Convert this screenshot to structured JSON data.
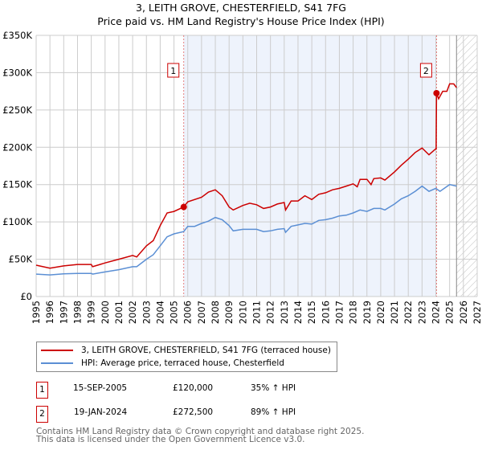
{
  "title": "3, LEITH GROVE, CHESTERFIELD, S41 7FG",
  "subtitle": "Price paid vs. HM Land Registry's House Price Index (HPI)",
  "chart_data": {
    "type": "line",
    "xlim": [
      1995,
      2027
    ],
    "ylim": [
      0,
      350000
    ],
    "x_ticks": [
      "1995",
      "1996",
      "1997",
      "1998",
      "1999",
      "2000",
      "2001",
      "2002",
      "2003",
      "2004",
      "2005",
      "2006",
      "2007",
      "2008",
      "2009",
      "2010",
      "2011",
      "2012",
      "2013",
      "2014",
      "2015",
      "2016",
      "2017",
      "2018",
      "2019",
      "2020",
      "2021",
      "2022",
      "2023",
      "2024",
      "2025",
      "2026",
      "2027"
    ],
    "y_ticks": [
      {
        "v": 0,
        "l": "£0"
      },
      {
        "v": 50000,
        "l": "£50K"
      },
      {
        "v": 100000,
        "l": "£100K"
      },
      {
        "v": 150000,
        "l": "£150K"
      },
      {
        "v": 200000,
        "l": "£200K"
      },
      {
        "v": 250000,
        "l": "£250K"
      },
      {
        "v": 300000,
        "l": "£300K"
      },
      {
        "v": 350000,
        "l": "£350K"
      }
    ],
    "colors": {
      "price": "#cc0000",
      "hpi": "#5b8fd4",
      "shade": "#eef3fc"
    },
    "forecast_from": 2025.5,
    "series": [
      {
        "name": "3, LEITH GROVE, CHESTERFIELD, S41 7FG (terraced house)",
        "key": "price",
        "points": [
          [
            1995,
            42
          ],
          [
            1996,
            38
          ],
          [
            1997,
            41
          ],
          [
            1998,
            43
          ],
          [
            1999,
            43
          ],
          [
            1999.1,
            40
          ],
          [
            2000,
            45
          ],
          [
            2001,
            50
          ],
          [
            2002,
            55
          ],
          [
            2002.3,
            53
          ],
          [
            2003,
            68
          ],
          [
            2003.5,
            75
          ],
          [
            2004,
            95
          ],
          [
            2004.5,
            112
          ],
          [
            2005,
            114
          ],
          [
            2005.7,
            120
          ],
          [
            2006,
            127
          ],
          [
            2007,
            133
          ],
          [
            2007.5,
            140
          ],
          [
            2008,
            143
          ],
          [
            2008.5,
            135
          ],
          [
            2009,
            120
          ],
          [
            2009.3,
            116
          ],
          [
            2010,
            122
          ],
          [
            2010.5,
            125
          ],
          [
            2011,
            123
          ],
          [
            2011.5,
            118
          ],
          [
            2012,
            120
          ],
          [
            2012.5,
            124
          ],
          [
            2013,
            126
          ],
          [
            2013.1,
            116
          ],
          [
            2013.5,
            128
          ],
          [
            2014,
            128
          ],
          [
            2014.5,
            135
          ],
          [
            2015,
            130
          ],
          [
            2015.5,
            137
          ],
          [
            2016,
            139
          ],
          [
            2016.5,
            143
          ],
          [
            2017,
            145
          ],
          [
            2017.5,
            148
          ],
          [
            2018,
            151
          ],
          [
            2018.3,
            147
          ],
          [
            2018.5,
            157
          ],
          [
            2019,
            157
          ],
          [
            2019.3,
            150
          ],
          [
            2019.5,
            158
          ],
          [
            2020,
            159
          ],
          [
            2020.3,
            156
          ],
          [
            2021,
            167
          ],
          [
            2021.5,
            176
          ],
          [
            2022,
            184
          ],
          [
            2022.5,
            193
          ],
          [
            2023,
            199
          ],
          [
            2023.5,
            190
          ],
          [
            2024,
            198
          ],
          [
            2024.02,
            197
          ],
          [
            2024.05,
            272.5
          ],
          [
            2024.2,
            265
          ],
          [
            2024.5,
            275
          ],
          [
            2024.8,
            275
          ],
          [
            2025,
            285
          ],
          [
            2025.3,
            285
          ],
          [
            2025.5,
            280
          ]
        ]
      },
      {
        "name": "HPI: Average price, terraced house, Chesterfield",
        "key": "hpi",
        "points": [
          [
            1995,
            30
          ],
          [
            1996,
            29
          ],
          [
            1997,
            30.5
          ],
          [
            1998,
            31
          ],
          [
            1999,
            31
          ],
          [
            1999.1,
            30
          ],
          [
            2000,
            33
          ],
          [
            2001,
            36
          ],
          [
            2002,
            40
          ],
          [
            2002.3,
            40
          ],
          [
            2003,
            50
          ],
          [
            2003.5,
            56
          ],
          [
            2004,
            68
          ],
          [
            2004.5,
            80
          ],
          [
            2005,
            84
          ],
          [
            2005.7,
            87
          ],
          [
            2006,
            94
          ],
          [
            2006.5,
            94
          ],
          [
            2007,
            98
          ],
          [
            2007.5,
            101
          ],
          [
            2008,
            106
          ],
          [
            2008.5,
            103
          ],
          [
            2009,
            95
          ],
          [
            2009.3,
            88
          ],
          [
            2010,
            90
          ],
          [
            2010.5,
            90
          ],
          [
            2011,
            90
          ],
          [
            2011.5,
            87
          ],
          [
            2012,
            88
          ],
          [
            2012.5,
            90
          ],
          [
            2013,
            91
          ],
          [
            2013.1,
            86
          ],
          [
            2013.5,
            94
          ],
          [
            2014,
            96
          ],
          [
            2014.5,
            98
          ],
          [
            2015,
            97
          ],
          [
            2015.5,
            102
          ],
          [
            2016,
            103
          ],
          [
            2016.5,
            105
          ],
          [
            2017,
            108
          ],
          [
            2017.5,
            109
          ],
          [
            2018,
            112
          ],
          [
            2018.5,
            116
          ],
          [
            2019,
            114
          ],
          [
            2019.5,
            118
          ],
          [
            2020,
            118
          ],
          [
            2020.3,
            116
          ],
          [
            2021,
            124
          ],
          [
            2021.5,
            131
          ],
          [
            2022,
            135
          ],
          [
            2022.5,
            141
          ],
          [
            2023,
            148
          ],
          [
            2023.5,
            141
          ],
          [
            2024,
            145
          ],
          [
            2024.3,
            141
          ],
          [
            2025,
            150
          ],
          [
            2025.5,
            148
          ]
        ]
      }
    ],
    "sales": [
      {
        "label": "1",
        "x": 2005.71,
        "y": 120000
      },
      {
        "label": "2",
        "x": 2024.05,
        "y": 272500
      }
    ]
  },
  "legend": {
    "price": "3, LEITH GROVE, CHESTERFIELD, S41 7FG (terraced house)",
    "hpi": "HPI: Average price, terraced house, Chesterfield"
  },
  "transactions": [
    {
      "n": "1",
      "date": "15-SEP-2005",
      "price": "£120,000",
      "hpi": "35% ↑ HPI"
    },
    {
      "n": "2",
      "date": "19-JAN-2024",
      "price": "£272,500",
      "hpi": "89% ↑ HPI"
    }
  ],
  "footer": [
    "Contains HM Land Registry data © Crown copyright and database right 2025.",
    "This data is licensed under the Open Government Licence v3.0."
  ]
}
